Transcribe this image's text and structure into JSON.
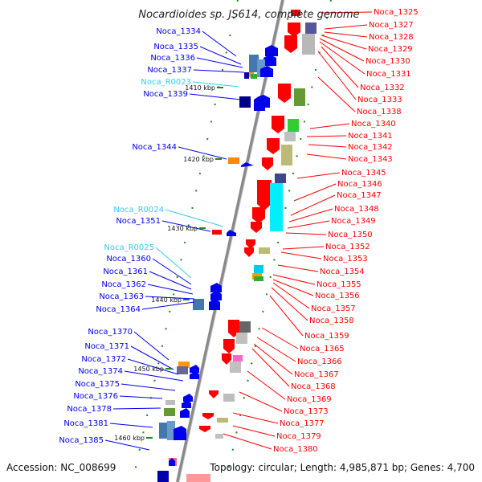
{
  "map": {
    "title": "Nocardioides sp. JS614, complete genome",
    "footer_left": "Accession: NC_008699",
    "footer_right": "Topology: circular; Length: 4,985,871 bp; Genes: 4,700",
    "scale_marks": [
      "1410 kbp",
      "1420 kbp",
      "1430 kbp",
      "1440 kbp",
      "1450 kbp",
      "1460 kbp"
    ],
    "right_labels": [
      "Noca_1325",
      "Noca_1327",
      "Noca_1328",
      "Noca_1329",
      "Noca_1330",
      "Noca_1331",
      "Noca_1332",
      "Noca_1333",
      "Noca_1338",
      "Noca_1340",
      "Noca_1341",
      "Noca_1342",
      "Noca_1343",
      "Noca_1345",
      "Noca_1346",
      "Noca_1347",
      "Noca_1348",
      "Noca_1349",
      "Noca_1350",
      "Noca_1352",
      "Noca_1353",
      "Noca_1354",
      "Noca_1355",
      "Noca_1356",
      "Noca_1357",
      "Noca_1358",
      "Noca_1359",
      "Noca_1365",
      "Noca_1366",
      "Noca_1367",
      "Noca_1368",
      "Noca_1369",
      "Noca_1373",
      "Noca_1377",
      "Noca_1379",
      "Noca_1380"
    ],
    "left_labels": [
      {
        "text": "Noca_1334",
        "kind": "gene"
      },
      {
        "text": "Noca_1335",
        "kind": "gene"
      },
      {
        "text": "Noca_1336",
        "kind": "gene"
      },
      {
        "text": "Noca_1337",
        "kind": "gene"
      },
      {
        "text": "Noca_R0023",
        "kind": "rna"
      },
      {
        "text": "Noca_1339",
        "kind": "gene"
      },
      {
        "text": "Noca_1344",
        "kind": "gene"
      },
      {
        "text": "Noca_R0024",
        "kind": "rna"
      },
      {
        "text": "Noca_1351",
        "kind": "gene"
      },
      {
        "text": "Noca_R0025",
        "kind": "rna"
      },
      {
        "text": "Noca_1360",
        "kind": "gene"
      },
      {
        "text": "Noca_1361",
        "kind": "gene"
      },
      {
        "text": "Noca_1362",
        "kind": "gene"
      },
      {
        "text": "Noca_1363",
        "kind": "gene"
      },
      {
        "text": "Noca_1364",
        "kind": "gene"
      },
      {
        "text": "Noca_1370",
        "kind": "gene"
      },
      {
        "text": "Noca_1371",
        "kind": "gene"
      },
      {
        "text": "Noca_1372",
        "kind": "gene"
      },
      {
        "text": "Noca_1374",
        "kind": "gene"
      },
      {
        "text": "Noca_1375",
        "kind": "gene"
      },
      {
        "text": "Noca_1376",
        "kind": "gene"
      },
      {
        "text": "Noca_1378",
        "kind": "gene"
      },
      {
        "text": "Noca_1381",
        "kind": "gene"
      },
      {
        "text": "Noca_1385",
        "kind": "gene"
      }
    ],
    "colors": {
      "reverse_strand": "#ff0000",
      "forward_strand": "#0000ee",
      "rna": "#33ccee",
      "backbone": "#8a8a8a",
      "tick": "#1a8a1a"
    }
  }
}
